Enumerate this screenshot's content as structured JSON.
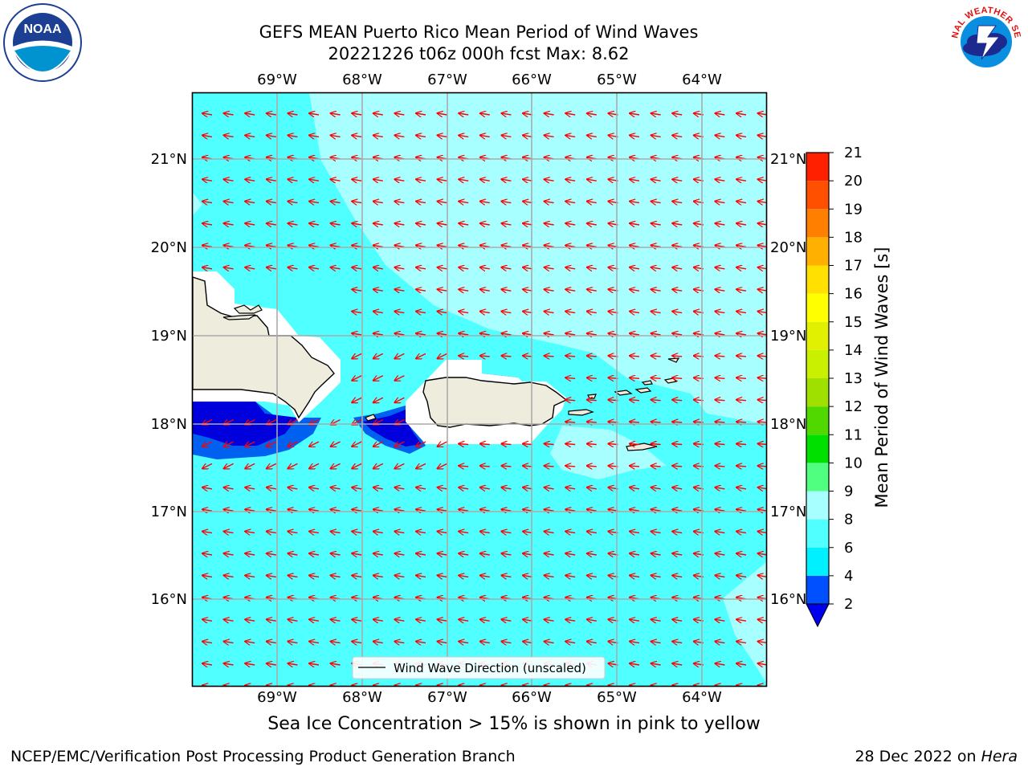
{
  "title": {
    "line1": "GEFS MEAN Puerto Rico Mean Period of Wind Waves",
    "line2": "20221226 t06z 000h fcst   Max: 8.62"
  },
  "axes": {
    "lon_labels": [
      "69°W",
      "68°W",
      "67°W",
      "66°W",
      "65°W",
      "64°W"
    ],
    "lat_labels": [
      "21°N",
      "20°N",
      "19°N",
      "18°N",
      "17°N",
      "16°N"
    ]
  },
  "legend": {
    "label": "Wind Wave Direction (unscaled)"
  },
  "colorbar": {
    "label": "Mean Period of Wind Waves [s]",
    "ticks": [
      "2",
      "4",
      "6",
      "8",
      "9",
      "10",
      "11",
      "12",
      "13",
      "14",
      "15",
      "16",
      "17",
      "18",
      "19",
      "20",
      "21"
    ],
    "levels": [
      2,
      4,
      6,
      8,
      9,
      10,
      11,
      12,
      13,
      14,
      15,
      16,
      17,
      18,
      19,
      20,
      21
    ],
    "colors": [
      "#0050ff",
      "#00f0ff",
      "#50ffff",
      "#a8ffff",
      "#50ff80",
      "#00e000",
      "#50d800",
      "#a0e000",
      "#c8f000",
      "#e0f000",
      "#ffff00",
      "#ffe000",
      "#ffb000",
      "#ff8000",
      "#ff5000",
      "#ff2000"
    ],
    "under_color": "#0000ee"
  },
  "colors": {
    "ocean": "#50ffff",
    "light": "#a8ffff",
    "blue": "#0000dd",
    "mid_blue": "#0060f0",
    "land": "#eeecdc",
    "arrow": "#ff0000"
  },
  "logos": {
    "noaa": "NOAA",
    "nws": "NATIONAL WEATHER SERVICE",
    "noaa_ring": "NATIONAL OCEANIC AND ATMOSPHERIC ADMINISTRATION · U.S. DEPARTMENT OF COMMERCE"
  },
  "footer": {
    "subtitle": "Sea Ice Concentration > 15% is shown in pink to yellow",
    "credit": "NCEP/EMC/Verification Post Processing Product Generation Branch",
    "date": "28 Dec 2022 on ",
    "date_machine": "Hera"
  }
}
